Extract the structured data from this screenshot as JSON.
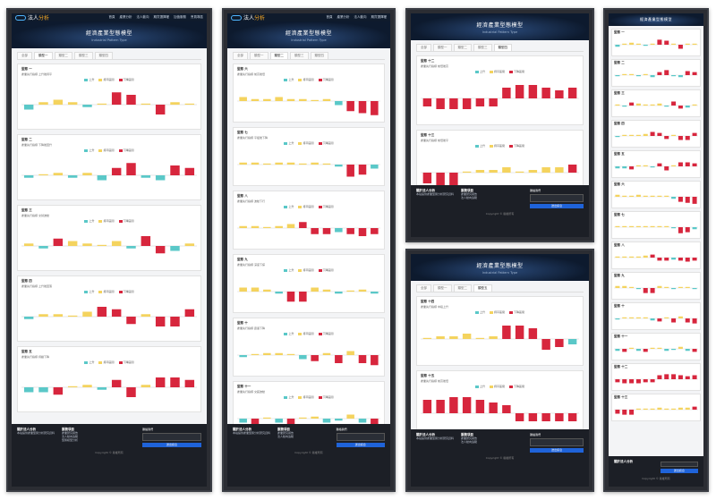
{
  "brand": {
    "name": "法人",
    "accent": "分析"
  },
  "nav": [
    "首頁",
    "產業分析",
    "法人動向",
    "期貨選擇權",
    "加值服務",
    "會員專區"
  ],
  "hero": {
    "title": "經濟產業型態模型",
    "subtitle": "Industrial Pattern Type"
  },
  "tabs": [
    "全部",
    "類型一",
    "類型二",
    "類型三",
    "類型四",
    "類型五"
  ],
  "legend": [
    "上升",
    "持平區間",
    "下降區間"
  ],
  "colors": {
    "up": "#5ac8c8",
    "flat": "#f4d35e",
    "down": "#d7263d"
  },
  "footer": {
    "col1_title": "關於法人分析",
    "col1_text": "本站提供產業型態分析研究資料",
    "col2_title": "服務項目",
    "col2_items": [
      "產業研究報告",
      "法人動向追蹤",
      "型態模型分析"
    ],
    "form_title": "聯絡我們",
    "send": "送出訊息",
    "copyright": "Copyright © 版權所有"
  },
  "cards": [
    {
      "title": "型態 一",
      "desc": "產業先行指標 上升後持平",
      "values": [
        -2,
        1,
        2,
        1,
        -1,
        0,
        5,
        4,
        0,
        -4,
        1,
        0
      ]
    },
    {
      "title": "型態 二",
      "desc": "產業先行指標 下降後回升",
      "values": [
        -1,
        0,
        1,
        -1,
        1,
        -2,
        3,
        5,
        -1,
        -2,
        4,
        3
      ]
    },
    {
      "title": "型態 三",
      "desc": "產業先行指標 交替波動",
      "values": [
        1,
        -1,
        3,
        2,
        1,
        0,
        2,
        -1,
        4,
        -3,
        -2,
        1
      ]
    },
    {
      "title": "型態 四",
      "desc": "產業先行指標 上升後回落",
      "values": [
        -1,
        1,
        1,
        0,
        2,
        4,
        3,
        -3,
        1,
        -4,
        -4,
        3
      ]
    },
    {
      "title": "型態 五",
      "desc": "產業先行指標 持續下降",
      "values": [
        -2,
        -2,
        -3,
        0,
        1,
        -1,
        3,
        -4,
        1,
        4,
        4,
        3
      ]
    },
    {
      "title": "型態 六",
      "desc": "產業先行指標 前高後低",
      "values": [
        2,
        1,
        1,
        2,
        1,
        1,
        0,
        1,
        -2,
        -5,
        -6,
        -7
      ]
    },
    {
      "title": "型態 七",
      "desc": "產業先行指標 平緩後下降",
      "values": [
        1,
        1,
        0,
        1,
        1,
        0,
        1,
        0,
        -1,
        -6,
        -5,
        -2
      ]
    },
    {
      "title": "型態 八",
      "desc": "產業先行指標 波動下行",
      "values": [
        1,
        1,
        0,
        1,
        2,
        3,
        -3,
        -3,
        -2,
        -3,
        -4,
        -3
      ]
    },
    {
      "title": "型態 九",
      "desc": "產業先行指標 深度下探",
      "values": [
        2,
        2,
        1,
        -1,
        -5,
        -5,
        2,
        1,
        -1,
        0,
        1,
        -1
      ]
    },
    {
      "title": "型態 十",
      "desc": "產業先行指標 震盪下降",
      "values": [
        -1,
        0,
        1,
        1,
        0,
        -2,
        -3,
        1,
        -4,
        2,
        -4,
        -5
      ]
    },
    {
      "title": "型態 十一",
      "desc": "產業先行指標 交錯波動",
      "values": [
        -2,
        -3,
        0,
        -2,
        -3,
        0,
        1,
        -2,
        -1,
        2,
        -2,
        -3
      ]
    },
    {
      "title": "型態 十二",
      "desc": "產業先行指標 前低後高",
      "values": [
        -3,
        -4,
        -4,
        -4,
        -3,
        -3,
        4,
        5,
        5,
        4,
        3,
        4
      ]
    },
    {
      "title": "型態 十三",
      "desc": "產業先行指標 前低後平",
      "values": [
        -4,
        -5,
        -5,
        0,
        1,
        1,
        2,
        0,
        1,
        2,
        2,
        3
      ]
    },
    {
      "title": "型態 十四",
      "desc": "產業先行指標 中段上升",
      "values": [
        0,
        1,
        1,
        2,
        0,
        1,
        5,
        5,
        4,
        -4,
        -3,
        -2
      ]
    },
    {
      "title": "型態 十五",
      "desc": "產業先行指標 前高後低",
      "values": [
        5,
        5,
        6,
        6,
        5,
        4,
        3,
        -3,
        -3,
        -3,
        -3,
        -3
      ]
    }
  ]
}
